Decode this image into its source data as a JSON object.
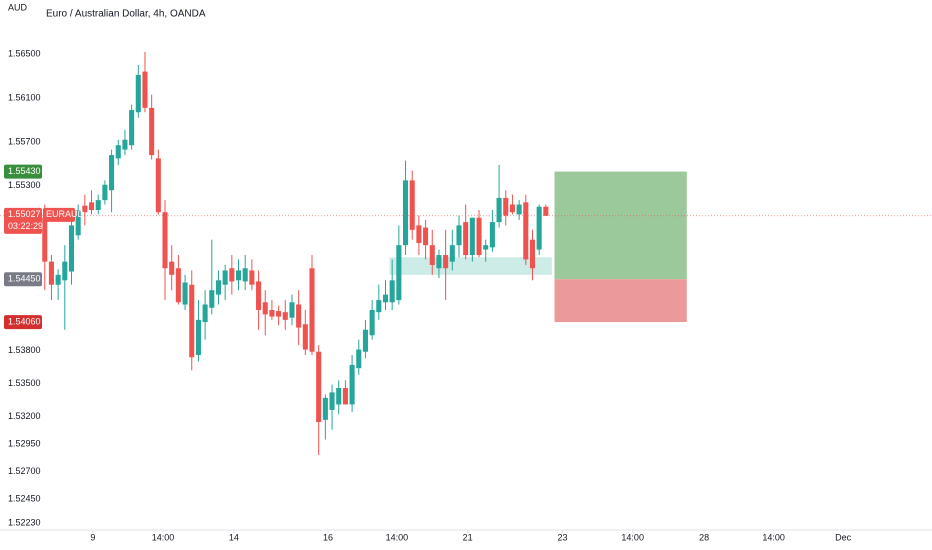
{
  "chart_data": {
    "type": "candlestick",
    "title": "Euro / Australian Dollar, 4h, OANDA",
    "y_label": "AUD",
    "symbol": "EURAUD",
    "countdown": "03:22:29",
    "up_color": "#26a69a",
    "down_color": "#ef5350",
    "grid": false,
    "ylim": [
      1.52167,
      1.56992
    ],
    "yticks": [
      {
        "value": 1.565,
        "label": "1.56500"
      },
      {
        "value": 1.561,
        "label": "1.56100"
      },
      {
        "value": 1.557,
        "label": "1.55700"
      },
      {
        "value": 1.553,
        "label": "1.55300"
      },
      {
        "value": 1.538,
        "label": "1.53800"
      },
      {
        "value": 1.535,
        "label": "1.53500"
      },
      {
        "value": 1.532,
        "label": "1.53200"
      },
      {
        "value": 1.5295,
        "label": "1.52950"
      },
      {
        "value": 1.527,
        "label": "1.52700"
      },
      {
        "value": 1.5245,
        "label": "1.52450"
      },
      {
        "value": 1.5223,
        "label": "1.52230"
      }
    ],
    "xlim": [
      -6.7,
      132.8
    ],
    "xticks": [
      {
        "value": 7.2,
        "label": "9"
      },
      {
        "value": 17.7,
        "label": "14:00"
      },
      {
        "value": 28.3,
        "label": "14"
      },
      {
        "value": 42.4,
        "label": "16"
      },
      {
        "value": 52.7,
        "label": "14:00"
      },
      {
        "value": 63.3,
        "label": "21"
      },
      {
        "value": 77.5,
        "label": "23"
      },
      {
        "value": 88,
        "label": "14:00"
      },
      {
        "value": 98.7,
        "label": "28"
      },
      {
        "value": 109.1,
        "label": "14:00"
      },
      {
        "value": 119.5,
        "label": "Dec"
      }
    ],
    "open": [
      1.5501,
      1.5461,
      1.544,
      1.5444,
      1.5452,
      1.5485,
      1.5512,
      1.5515,
      1.5508,
      1.5517,
      1.5526,
      1.5555,
      1.5563,
      1.5567,
      1.5597,
      1.5634,
      1.5601,
      1.5555,
      1.5506,
      1.5461,
      1.5455,
      1.5422,
      1.544,
      1.5376,
      1.5406,
      1.5419,
      1.5431,
      1.544,
      1.5455,
      1.5444,
      1.5443,
      1.5453,
      1.5443,
      1.5424,
      1.5417,
      1.5416,
      1.5415,
      1.541,
      1.5422,
      1.5404,
      1.5455,
      1.5379,
      1.5317,
      1.5326,
      1.5331,
      1.5346,
      1.5331,
      1.5364,
      1.5379,
      1.5394,
      1.5415,
      1.5424,
      1.5424,
      1.5426,
      1.5476,
      1.5535,
      1.5494,
      1.5492,
      1.5476,
      1.5455,
      1.5467,
      1.5461,
      1.5476,
      1.5497,
      1.5467,
      1.5501,
      1.5472,
      1.5474,
      1.5497,
      1.5519,
      1.5513,
      1.5504,
      1.5515,
      1.5481,
      1.5472,
      1.5511
    ],
    "high": [
      1.5513,
      1.5467,
      1.5454,
      1.5476,
      1.5499,
      1.5513,
      1.5522,
      1.5526,
      1.5522,
      1.5535,
      1.5563,
      1.5572,
      1.5581,
      1.5604,
      1.564,
      1.5652,
      1.5613,
      1.5563,
      1.5517,
      1.5476,
      1.5467,
      1.5449,
      1.5453,
      1.5426,
      1.5435,
      1.5481,
      1.5453,
      1.5458,
      1.5467,
      1.5463,
      1.5467,
      1.5463,
      1.5453,
      1.5435,
      1.5426,
      1.5421,
      1.5426,
      1.5431,
      1.5435,
      1.5417,
      1.5467,
      1.5385,
      1.534,
      1.5349,
      1.5353,
      1.5353,
      1.5376,
      1.539,
      1.5408,
      1.5426,
      1.544,
      1.5444,
      1.5463,
      1.5494,
      1.5553,
      1.5544,
      1.5503,
      1.5499,
      1.549,
      1.5472,
      1.549,
      1.549,
      1.5503,
      1.5513,
      1.5501,
      1.5508,
      1.5481,
      1.5508,
      1.5549,
      1.5526,
      1.5522,
      1.5517,
      1.5522,
      1.549,
      1.5513,
      1.5513
    ],
    "low": [
      1.5435,
      1.5426,
      1.5426,
      1.5399,
      1.544,
      1.5481,
      1.5494,
      1.5504,
      1.5504,
      1.5513,
      1.5506,
      1.5549,
      1.5558,
      1.5563,
      1.5592,
      1.5597,
      1.5554,
      1.5504,
      1.5426,
      1.5435,
      1.5422,
      1.5417,
      1.5362,
      1.537,
      1.539,
      1.5413,
      1.5422,
      1.5426,
      1.5431,
      1.5435,
      1.5435,
      1.5435,
      1.5399,
      1.5394,
      1.5408,
      1.5403,
      1.5399,
      1.5403,
      1.5385,
      1.5376,
      1.5376,
      1.5285,
      1.5299,
      1.5308,
      1.5322,
      1.5331,
      1.5324,
      1.5358,
      1.5373,
      1.539,
      1.5408,
      1.5417,
      1.5417,
      1.5422,
      1.5467,
      1.5481,
      1.5467,
      1.5463,
      1.5449,
      1.5446,
      1.5426,
      1.5453,
      1.5465,
      1.5463,
      1.5461,
      1.5465,
      1.5461,
      1.547,
      1.5492,
      1.5494,
      1.5504,
      1.5499,
      1.5458,
      1.5444,
      1.5467,
      1.5503
    ],
    "close": [
      1.5461,
      1.544,
      1.5449,
      1.5461,
      1.5494,
      1.5508,
      1.5506,
      1.5508,
      1.5517,
      1.5531,
      1.5558,
      1.5567,
      1.5572,
      1.5599,
      1.5631,
      1.5601,
      1.5558,
      1.5506,
      1.5455,
      1.5449,
      1.5424,
      1.5442,
      1.5374,
      1.5408,
      1.5422,
      1.5435,
      1.5444,
      1.5453,
      1.5443,
      1.5453,
      1.5455,
      1.544,
      1.5417,
      1.5413,
      1.5411,
      1.5411,
      1.5408,
      1.5424,
      1.5401,
      1.5381,
      1.5379,
      1.5315,
      1.5337,
      1.5342,
      1.5346,
      1.5331,
      1.5367,
      1.5381,
      1.5399,
      1.5417,
      1.5426,
      1.5431,
      1.5444,
      1.5476,
      1.5535,
      1.549,
      1.5478,
      1.5476,
      1.5458,
      1.5467,
      1.5455,
      1.5476,
      1.5494,
      1.5467,
      1.5501,
      1.5467,
      1.5476,
      1.5497,
      1.5519,
      1.5503,
      1.5506,
      1.5513,
      1.5463,
      1.5455,
      1.5511,
      1.55027
    ],
    "last_price": 1.55027,
    "zone": {
      "x": [
        51.6,
        75.9
      ],
      "low": 1.5449,
      "high": 1.5465
    },
    "position": {
      "x": [
        76.3,
        96.1
      ],
      "target": {
        "value": 1.5543,
        "label": "1.55430"
      },
      "entry": {
        "value": 1.5445,
        "label": "1.54450"
      },
      "stop": {
        "value": 1.5406,
        "label": "1.54060"
      }
    }
  }
}
